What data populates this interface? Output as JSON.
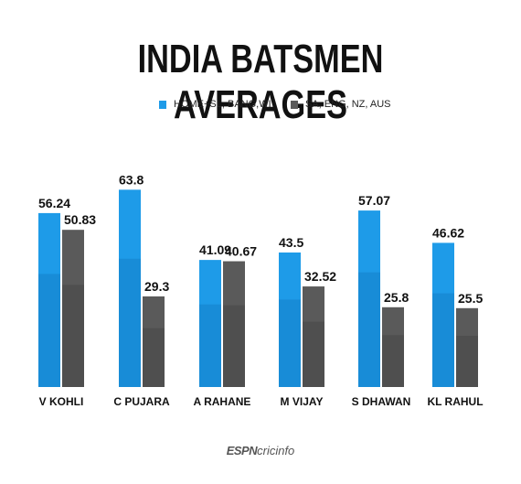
{
  "chart_data": {
    "type": "bar",
    "title": "INDIA BATSMEN AVERAGES",
    "categories": [
      "V KOHLI",
      "C PUJARA",
      "A RAHANE",
      "M VIJAY",
      "S DHAWAN",
      "KL RAHUL"
    ],
    "series": [
      {
        "name": "HOME+SL, BANG,WI",
        "color": "#1e9be8",
        "values": [
          56.24,
          63.8,
          41.09,
          43.5,
          57.07,
          46.62
        ],
        "labels": [
          "56.24",
          "63.8",
          "41.09",
          "43.5",
          "57.07",
          "46.62"
        ]
      },
      {
        "name": "SA, ENG, NZ, AUS",
        "color": "#5a5a5a",
        "values": [
          50.83,
          29.3,
          40.67,
          32.52,
          25.8,
          25.5
        ],
        "labels": [
          "50.83",
          "29.3",
          "40.67",
          "32.52",
          "25.8",
          "25.5"
        ]
      }
    ],
    "xlabel": "",
    "ylabel": "",
    "ylim": [
      0,
      65
    ],
    "grid": false,
    "legend_position": "top-center"
  },
  "footer": {
    "brand_espn": "ESPN",
    "brand_cricinfo": "cricinfo"
  }
}
